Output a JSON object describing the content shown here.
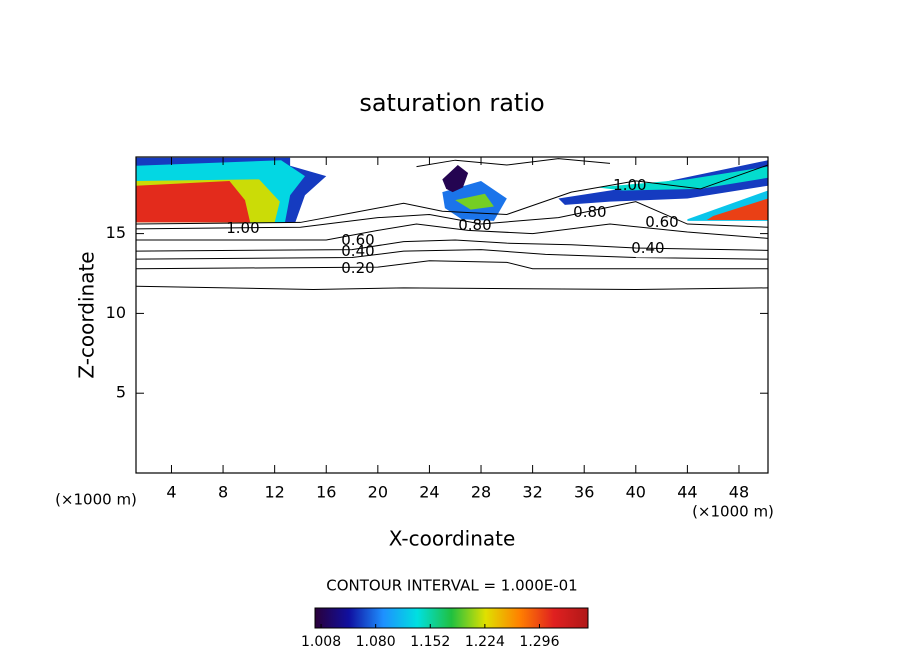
{
  "chart_data": {
    "type": "contour",
    "title": "saturation ratio",
    "x_label": "X-coordinate",
    "y_label": "Z-coordinate",
    "x_unit_label": "(×1000 m)",
    "interval_label": "CONTOUR INTERVAL = 1.000E-01",
    "xlim": [
      1.25,
      50.25
    ],
    "ylim": [
      0,
      19.8
    ],
    "xticks": [
      4,
      8,
      12,
      16,
      20,
      24,
      28,
      32,
      36,
      40,
      44,
      48
    ],
    "yticks": [
      5,
      10,
      15
    ],
    "colormap": [
      "#2a003a",
      "#1010a0",
      "#1e90ff",
      "#00e0e0",
      "#20c040",
      "#e0e000",
      "#ff8000",
      "#e02020",
      "#b01818"
    ],
    "clim": [
      1.0,
      1.36
    ],
    "colorbar_ticks": [
      1.008,
      {
        "value": 1.08,
        "label": "1.080"
      },
      1.152,
      1.224,
      1.296
    ],
    "filled_regions": [
      {
        "value": 1.06,
        "x": [
          1.25,
          13.2,
          13.2,
          16.0,
          14.35,
          13.6,
          1.25
        ],
        "z": [
          19.75,
          19.75,
          19.25,
          18.6,
          17.4,
          15.7,
          15.7
        ]
      },
      {
        "value": 1.13,
        "x": [
          1.25,
          12.5,
          14.35,
          13.2,
          12.8,
          1.25
        ],
        "z": [
          19.25,
          19.6,
          18.6,
          17.4,
          15.7,
          15.7
        ]
      },
      {
        "value": 1.22,
        "x": [
          1.25,
          10.8,
          12.4,
          12.0,
          1.25
        ],
        "z": [
          18.3,
          18.4,
          17.0,
          15.7,
          15.7
        ]
      },
      {
        "value": 1.31,
        "x": [
          1.25,
          8.5,
          9.7,
          10.1,
          1.25
        ],
        "z": [
          18.0,
          18.3,
          17.1,
          15.7,
          15.7
        ]
      },
      {
        "value": 1.08,
        "x": [
          25.0,
          28.0,
          30.0,
          29.0,
          26.5,
          25.2
        ],
        "z": [
          17.6,
          18.3,
          17.2,
          15.8,
          15.9,
          16.6
        ]
      },
      {
        "value": 1.2,
        "x": [
          26.0,
          28.3,
          29.0,
          27.2
        ],
        "z": [
          17.1,
          17.5,
          16.7,
          16.5
        ]
      },
      {
        "value": 1.01,
        "x": [
          25.0,
          26.2,
          27.0,
          26.6,
          25.8,
          25.3
        ],
        "z": [
          18.4,
          19.3,
          18.8,
          17.9,
          17.6,
          17.8
        ]
      },
      {
        "value": 1.06,
        "x": [
          34.0,
          42.0,
          50.25,
          50.25,
          44.0,
          38.0,
          34.5
        ],
        "z": [
          17.2,
          18.2,
          19.6,
          18.0,
          17.2,
          17.0,
          16.8
        ]
      },
      {
        "value": 1.14,
        "x": [
          37.0,
          44.0,
          50.25,
          50.25,
          45.0,
          39.0
        ],
        "z": [
          17.9,
          18.4,
          19.2,
          18.5,
          17.8,
          17.7
        ]
      },
      {
        "value": 1.12,
        "x": [
          44.0,
          50.25,
          50.25,
          44.0
        ],
        "z": [
          15.9,
          17.7,
          15.8,
          15.8
        ]
      },
      {
        "value": 1.3,
        "x": [
          46.0,
          50.25,
          50.25,
          45.5
        ],
        "z": [
          16.1,
          17.2,
          15.85,
          15.85
        ]
      }
    ],
    "contours": [
      {
        "x": [
          1.25,
          15,
          22,
          40,
          50.25
        ],
        "z": [
          11.7,
          11.5,
          11.6,
          11.5,
          11.6
        ]
      },
      {
        "x": [
          1.25,
          20,
          24,
          30,
          32,
          34,
          50.25
        ],
        "z": [
          12.8,
          12.9,
          13.3,
          13.2,
          12.8,
          12.8,
          12.8
        ]
      },
      {
        "x": [
          1.25,
          18,
          22,
          28,
          33,
          40,
          50.25
        ],
        "z": [
          13.4,
          13.5,
          13.9,
          14.0,
          13.7,
          13.5,
          13.4
        ]
      },
      {
        "x": [
          1.25,
          18,
          22,
          26,
          30,
          35,
          40,
          50.25
        ],
        "z": [
          13.9,
          14.0,
          14.5,
          14.6,
          14.4,
          14.3,
          14.1,
          13.95
        ]
      },
      {
        "x": [
          1.25,
          16,
          20,
          23,
          27,
          32,
          38,
          44,
          50.25
        ],
        "z": [
          14.6,
          14.6,
          15.2,
          15.6,
          15.2,
          15.0,
          15.6,
          15.1,
          14.7
        ]
      },
      {
        "x": [
          1.25,
          14,
          20,
          24,
          28,
          34,
          40,
          44,
          50.25
        ],
        "z": [
          15.3,
          15.4,
          16.0,
          16.2,
          15.6,
          16.0,
          17.0,
          15.6,
          15.4
        ]
      },
      {
        "x": [
          1.25,
          14,
          18,
          22,
          25,
          30,
          35,
          40,
          45,
          50.25
        ],
        "z": [
          15.6,
          15.7,
          16.3,
          16.9,
          16.4,
          16.2,
          17.6,
          18.3,
          17.8,
          19.3
        ]
      },
      {
        "x": [
          23,
          26,
          30,
          34,
          38
        ],
        "z": [
          19.2,
          19.6,
          19.3,
          19.7,
          19.4
        ]
      }
    ],
    "contour_labels": [
      {
        "x": 9.54,
        "z": 15.31,
        "value": 1,
        "label": "1.00"
      },
      {
        "x": 18.46,
        "z": 14.56,
        "value": 0.6,
        "label": "0.60"
      },
      {
        "x": 18.46,
        "z": 13.88,
        "value": 0.4,
        "label": "0.40"
      },
      {
        "x": 18.46,
        "z": 12.81,
        "value": 0.2,
        "label": "0.20"
      },
      {
        "x": 27.53,
        "z": 15.5,
        "value": 0.8,
        "label": "0.80"
      },
      {
        "x": 39.54,
        "z": 18.0,
        "value": 1,
        "label": "1.00"
      },
      {
        "x": 36.44,
        "z": 16.31,
        "value": 0.8,
        "label": "0.80"
      },
      {
        "x": 42.03,
        "z": 15.69,
        "value": 0.6,
        "label": "0.60"
      },
      {
        "x": 40.94,
        "z": 14.06,
        "value": 0.4,
        "label": "0.40"
      }
    ]
  }
}
